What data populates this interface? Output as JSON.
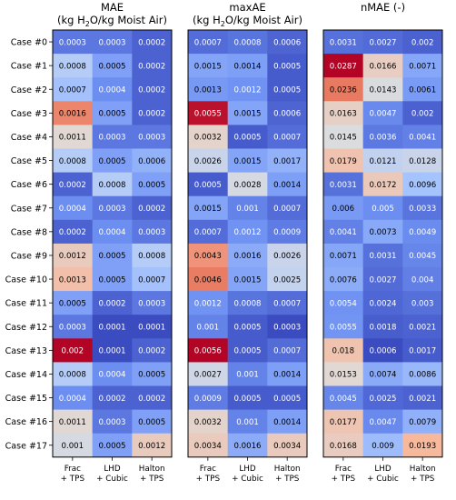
{
  "chart_data": {
    "type": "heatmap",
    "rows": [
      "Case #0",
      "Case #1",
      "Case #2",
      "Case #3",
      "Case #4",
      "Case #5",
      "Case #6",
      "Case #7",
      "Case #8",
      "Case #9",
      "Case #10",
      "Case #11",
      "Case #12",
      "Case #13",
      "Case #14",
      "Case #15",
      "Case #16",
      "Case #17"
    ],
    "columns": [
      {
        "line1": "Frac",
        "line2": "+ TPS"
      },
      {
        "line1": "LHD",
        "line2": "+ Cubic"
      },
      {
        "line1": "Halton",
        "line2": "+ TPS"
      }
    ],
    "panels": [
      {
        "id": "mae",
        "title_prefix": "MAE",
        "title_line2_a": "(kg H",
        "title_sub": "2",
        "title_line2_b": "O/kg Moist Air)",
        "values": [
          [
            "0.0003",
            "0.0003",
            "0.0002"
          ],
          [
            "0.0008",
            "0.0005",
            "0.0002"
          ],
          [
            "0.0007",
            "0.0004",
            "0.0002"
          ],
          [
            "0.0016",
            "0.0005",
            "0.0002"
          ],
          [
            "0.0011",
            "0.0003",
            "0.0003"
          ],
          [
            "0.0008",
            "0.0005",
            "0.0006"
          ],
          [
            "0.0002",
            "0.0008",
            "0.0005"
          ],
          [
            "0.0004",
            "0.0003",
            "0.0002"
          ],
          [
            "0.0002",
            "0.0004",
            "0.0003"
          ],
          [
            "0.0012",
            "0.0005",
            "0.0008"
          ],
          [
            "0.0013",
            "0.0005",
            "0.0007"
          ],
          [
            "0.0005",
            "0.0002",
            "0.0003"
          ],
          [
            "0.0003",
            "0.0001",
            "0.0001"
          ],
          [
            "0.002",
            "0.0001",
            "0.0002"
          ],
          [
            "0.0008",
            "0.0004",
            "0.0005"
          ],
          [
            "0.0004",
            "0.0002",
            "0.0002"
          ],
          [
            "0.0011",
            "0.0003",
            "0.0005"
          ],
          [
            "0.001",
            "0.0005",
            "0.0012"
          ]
        ]
      },
      {
        "id": "maxae",
        "title_prefix": "maxAE",
        "title_line2_a": "(kg H",
        "title_sub": "2",
        "title_line2_b": "O/kg Moist Air)",
        "values": [
          [
            "0.0007",
            "0.0008",
            "0.0006"
          ],
          [
            "0.0015",
            "0.0014",
            "0.0005"
          ],
          [
            "0.0013",
            "0.0012",
            "0.0005"
          ],
          [
            "0.0055",
            "0.0015",
            "0.0006"
          ],
          [
            "0.0032",
            "0.0005",
            "0.0007"
          ],
          [
            "0.0026",
            "0.0015",
            "0.0017"
          ],
          [
            "0.0005",
            "0.0028",
            "0.0014"
          ],
          [
            "0.0015",
            "0.001",
            "0.0007"
          ],
          [
            "0.0007",
            "0.0012",
            "0.0009"
          ],
          [
            "0.0043",
            "0.0016",
            "0.0026"
          ],
          [
            "0.0046",
            "0.0015",
            "0.0025"
          ],
          [
            "0.0012",
            "0.0008",
            "0.0007"
          ],
          [
            "0.001",
            "0.0005",
            "0.0003"
          ],
          [
            "0.0056",
            "0.0005",
            "0.0007"
          ],
          [
            "0.0027",
            "0.001",
            "0.0014"
          ],
          [
            "0.0009",
            "0.0005",
            "0.0005"
          ],
          [
            "0.0032",
            "0.001",
            "0.0014"
          ],
          [
            "0.0034",
            "0.0016",
            "0.0034"
          ]
        ]
      },
      {
        "id": "nmae",
        "title_prefix": "nMAE (-)",
        "title_line2_a": "",
        "title_sub": "",
        "title_line2_b": "",
        "values": [
          [
            "0.0031",
            "0.0027",
            "0.002"
          ],
          [
            "0.0287",
            "0.0166",
            "0.0071"
          ],
          [
            "0.0236",
            "0.0143",
            "0.0061"
          ],
          [
            "0.0163",
            "0.0047",
            "0.002"
          ],
          [
            "0.0145",
            "0.0036",
            "0.0041"
          ],
          [
            "0.0179",
            "0.0121",
            "0.0128"
          ],
          [
            "0.0031",
            "0.0172",
            "0.0096"
          ],
          [
            "0.006",
            "0.005",
            "0.0033"
          ],
          [
            "0.0041",
            "0.0073",
            "0.0049"
          ],
          [
            "0.0071",
            "0.0031",
            "0.0045"
          ],
          [
            "0.0076",
            "0.0027",
            "0.004"
          ],
          [
            "0.0054",
            "0.0024",
            "0.003"
          ],
          [
            "0.0055",
            "0.0018",
            "0.0021"
          ],
          [
            "0.018",
            "0.0006",
            "0.0017"
          ],
          [
            "0.0153",
            "0.0074",
            "0.0086"
          ],
          [
            "0.0045",
            "0.0025",
            "0.0021"
          ],
          [
            "0.0177",
            "0.0047",
            "0.0079"
          ],
          [
            "0.0168",
            "0.009",
            "0.0193"
          ]
        ]
      }
    ],
    "colormap": "coolwarm",
    "colormap_stops": [
      "#3b4cc0",
      "#6f92f3",
      "#aac7fd",
      "#dddddd",
      "#f7b89c",
      "#e7745b",
      "#b40426"
    ],
    "panel_ranges": [
      [
        0.0001,
        0.002
      ],
      [
        0.0003,
        0.0056
      ],
      [
        0.0006,
        0.0287
      ]
    ]
  }
}
